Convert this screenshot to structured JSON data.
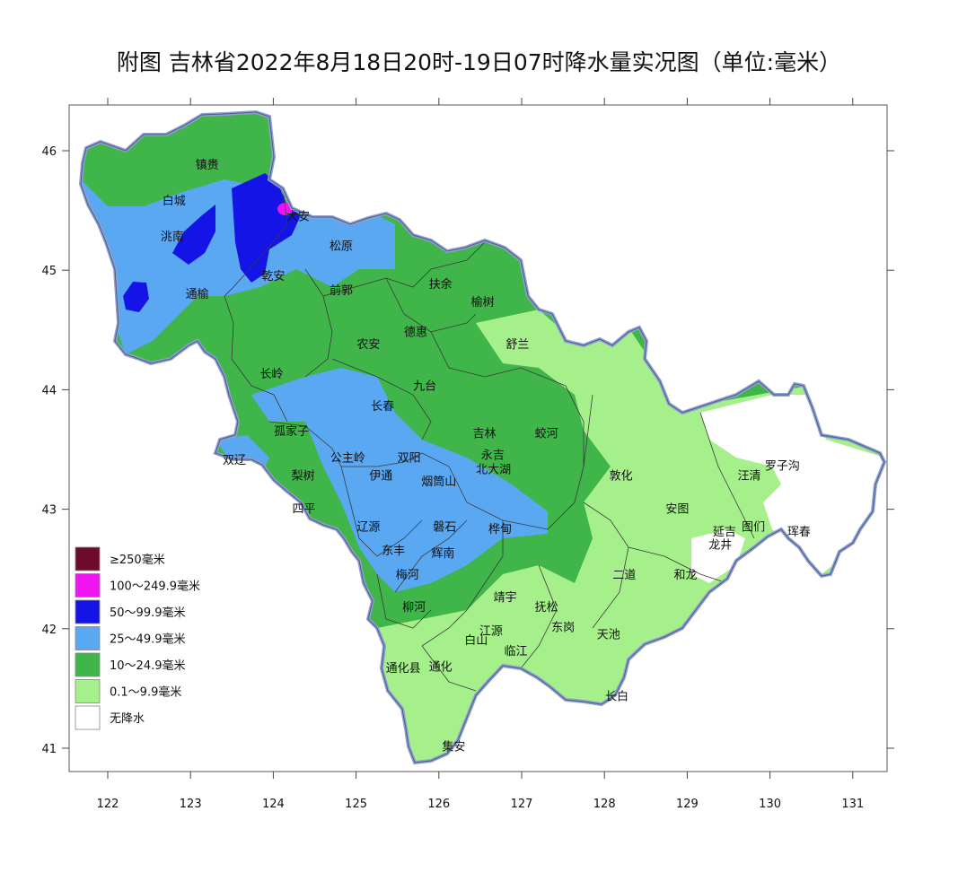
{
  "title": "附图 吉林省2022年8月18日20时-19日07时降水量实况图（单位:毫米）",
  "colors": {
    "none": "#ffffff",
    "light": "#a6f08c",
    "moderate": "#3fb54a",
    "heavy": "#5aa8f2",
    "rainstorm": "#1414e6",
    "heavy_rainstorm": "#f014f0",
    "extreme": "#6e0a2a",
    "border": "#8fa0cf",
    "county_line": "#3a3a3a"
  },
  "axes": {
    "x_ticks": [
      "122",
      "123",
      "124",
      "125",
      "126",
      "127",
      "128",
      "129",
      "130",
      "131"
    ],
    "y_ticks": [
      "46",
      "45",
      "44",
      "43",
      "42",
      "41"
    ],
    "x_values": [
      122,
      123,
      124,
      125,
      126,
      127,
      128,
      129,
      130,
      131
    ],
    "y_values": [
      46,
      45,
      44,
      43,
      42,
      41
    ]
  },
  "legend": [
    {
      "label": "≥250毫米",
      "color": "#6e0a2a"
    },
    {
      "label": "100～249.9毫米",
      "color": "#f014f0"
    },
    {
      "label": "50～99.9毫米",
      "color": "#1414e6"
    },
    {
      "label": "25～49.9毫米",
      "color": "#5aa8f2"
    },
    {
      "label": "10～24.9毫米",
      "color": "#3fb54a"
    },
    {
      "label": "0.1～9.9毫米",
      "color": "#a6f08c"
    },
    {
      "label": "无降水",
      "color": "#ffffff"
    }
  ],
  "cities": [
    {
      "name": "镇赉",
      "lon": 123.2,
      "lat": 45.85
    },
    {
      "name": "白城",
      "lon": 122.8,
      "lat": 45.55
    },
    {
      "name": "洮南",
      "lon": 122.78,
      "lat": 45.25
    },
    {
      "name": "大安",
      "lon": 124.3,
      "lat": 45.42
    },
    {
      "name": "松原",
      "lon": 124.82,
      "lat": 45.17
    },
    {
      "name": "乾安",
      "lon": 124.0,
      "lat": 44.92
    },
    {
      "name": "通榆",
      "lon": 123.08,
      "lat": 44.77
    },
    {
      "name": "前郭",
      "lon": 124.82,
      "lat": 44.8
    },
    {
      "name": "扶余",
      "lon": 126.02,
      "lat": 44.85
    },
    {
      "name": "榆树",
      "lon": 126.53,
      "lat": 44.7
    },
    {
      "name": "德惠",
      "lon": 125.72,
      "lat": 44.45
    },
    {
      "name": "农安",
      "lon": 125.15,
      "lat": 44.35
    },
    {
      "name": "舒兰",
      "lon": 126.95,
      "lat": 44.35
    },
    {
      "name": "长岭",
      "lon": 123.98,
      "lat": 44.1
    },
    {
      "name": "九台",
      "lon": 125.83,
      "lat": 44.0
    },
    {
      "name": "长春",
      "lon": 125.32,
      "lat": 43.83
    },
    {
      "name": "吉林",
      "lon": 126.55,
      "lat": 43.6
    },
    {
      "name": "蛟河",
      "lon": 127.3,
      "lat": 43.6
    },
    {
      "name": "孤家子",
      "lon": 124.22,
      "lat": 43.62
    },
    {
      "name": "双辽",
      "lon": 123.53,
      "lat": 43.38
    },
    {
      "name": "公主岭",
      "lon": 124.9,
      "lat": 43.4
    },
    {
      "name": "双阳",
      "lon": 125.64,
      "lat": 43.4
    },
    {
      "name": "永吉",
      "lon": 126.65,
      "lat": 43.42
    },
    {
      "name": "北大湖",
      "lon": 126.66,
      "lat": 43.3
    },
    {
      "name": "敦化",
      "lon": 128.2,
      "lat": 43.25
    },
    {
      "name": "梨树",
      "lon": 124.36,
      "lat": 43.25
    },
    {
      "name": "伊通",
      "lon": 125.3,
      "lat": 43.25
    },
    {
      "name": "烟筒山",
      "lon": 126.0,
      "lat": 43.2
    },
    {
      "name": "汪清",
      "lon": 129.75,
      "lat": 43.25
    },
    {
      "name": "罗子沟",
      "lon": 130.15,
      "lat": 43.33
    },
    {
      "name": "四平",
      "lon": 124.37,
      "lat": 42.97
    },
    {
      "name": "安图",
      "lon": 128.88,
      "lat": 42.97
    },
    {
      "name": "磐石",
      "lon": 126.07,
      "lat": 42.82
    },
    {
      "name": "桦甸",
      "lon": 126.74,
      "lat": 42.8
    },
    {
      "name": "辽源",
      "lon": 125.15,
      "lat": 42.82
    },
    {
      "name": "延吉",
      "lon": 129.45,
      "lat": 42.78
    },
    {
      "name": "图们",
      "lon": 129.8,
      "lat": 42.82
    },
    {
      "name": "龙井",
      "lon": 129.4,
      "lat": 42.67
    },
    {
      "name": "珲春",
      "lon": 130.35,
      "lat": 42.78
    },
    {
      "name": "东丰",
      "lon": 125.45,
      "lat": 42.62
    },
    {
      "name": "辉南",
      "lon": 126.05,
      "lat": 42.6
    },
    {
      "name": "梅河",
      "lon": 125.62,
      "lat": 42.42
    },
    {
      "name": "二道",
      "lon": 128.24,
      "lat": 42.42
    },
    {
      "name": "和龙",
      "lon": 128.98,
      "lat": 42.42
    },
    {
      "name": "靖宇",
      "lon": 126.8,
      "lat": 42.23
    },
    {
      "name": "抚松",
      "lon": 127.3,
      "lat": 42.15
    },
    {
      "name": "柳河",
      "lon": 125.7,
      "lat": 42.15
    },
    {
      "name": "东岗",
      "lon": 127.5,
      "lat": 41.98
    },
    {
      "name": "天池",
      "lon": 128.05,
      "lat": 41.92
    },
    {
      "name": "江源",
      "lon": 126.63,
      "lat": 41.95
    },
    {
      "name": "白山",
      "lon": 126.45,
      "lat": 41.87
    },
    {
      "name": "临江",
      "lon": 126.93,
      "lat": 41.78
    },
    {
      "name": "通化县",
      "lon": 125.57,
      "lat": 41.64
    },
    {
      "name": "通化",
      "lon": 126.02,
      "lat": 41.65
    },
    {
      "name": "长白",
      "lon": 128.15,
      "lat": 41.4
    },
    {
      "name": "集安",
      "lon": 126.18,
      "lat": 40.98
    }
  ]
}
